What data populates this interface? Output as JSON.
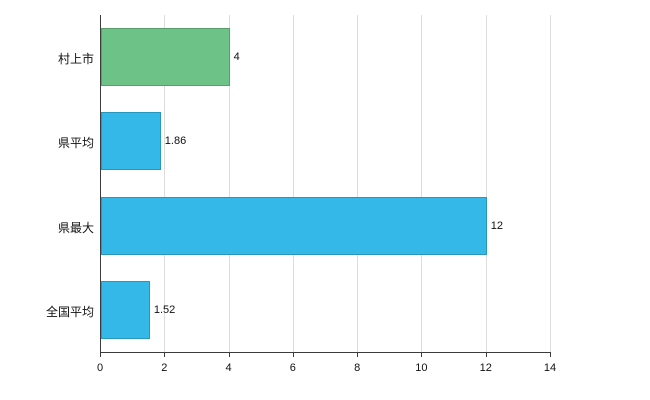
{
  "chart_data": {
    "type": "bar",
    "orientation": "horizontal",
    "title": "",
    "xlabel": "",
    "ylabel": "",
    "categories": [
      "村上市",
      "県平均",
      "県最大",
      "全国平均"
    ],
    "values": [
      4,
      1.86,
      12,
      1.52
    ],
    "value_labels": [
      "4",
      "1.86",
      "12",
      "1.52"
    ],
    "bar_colors": [
      "#6dc387",
      "#33b8e8",
      "#33b8e8",
      "#33b8e8"
    ],
    "xlim": [
      0,
      14
    ],
    "x_ticks": [
      0,
      2,
      4,
      6,
      8,
      10,
      12,
      14
    ],
    "grid": true,
    "legend": "none",
    "colors": {
      "gridline": "#dcdcdc",
      "axis": "#3c3c3c",
      "text": "#111111",
      "background": "#ffffff"
    }
  }
}
